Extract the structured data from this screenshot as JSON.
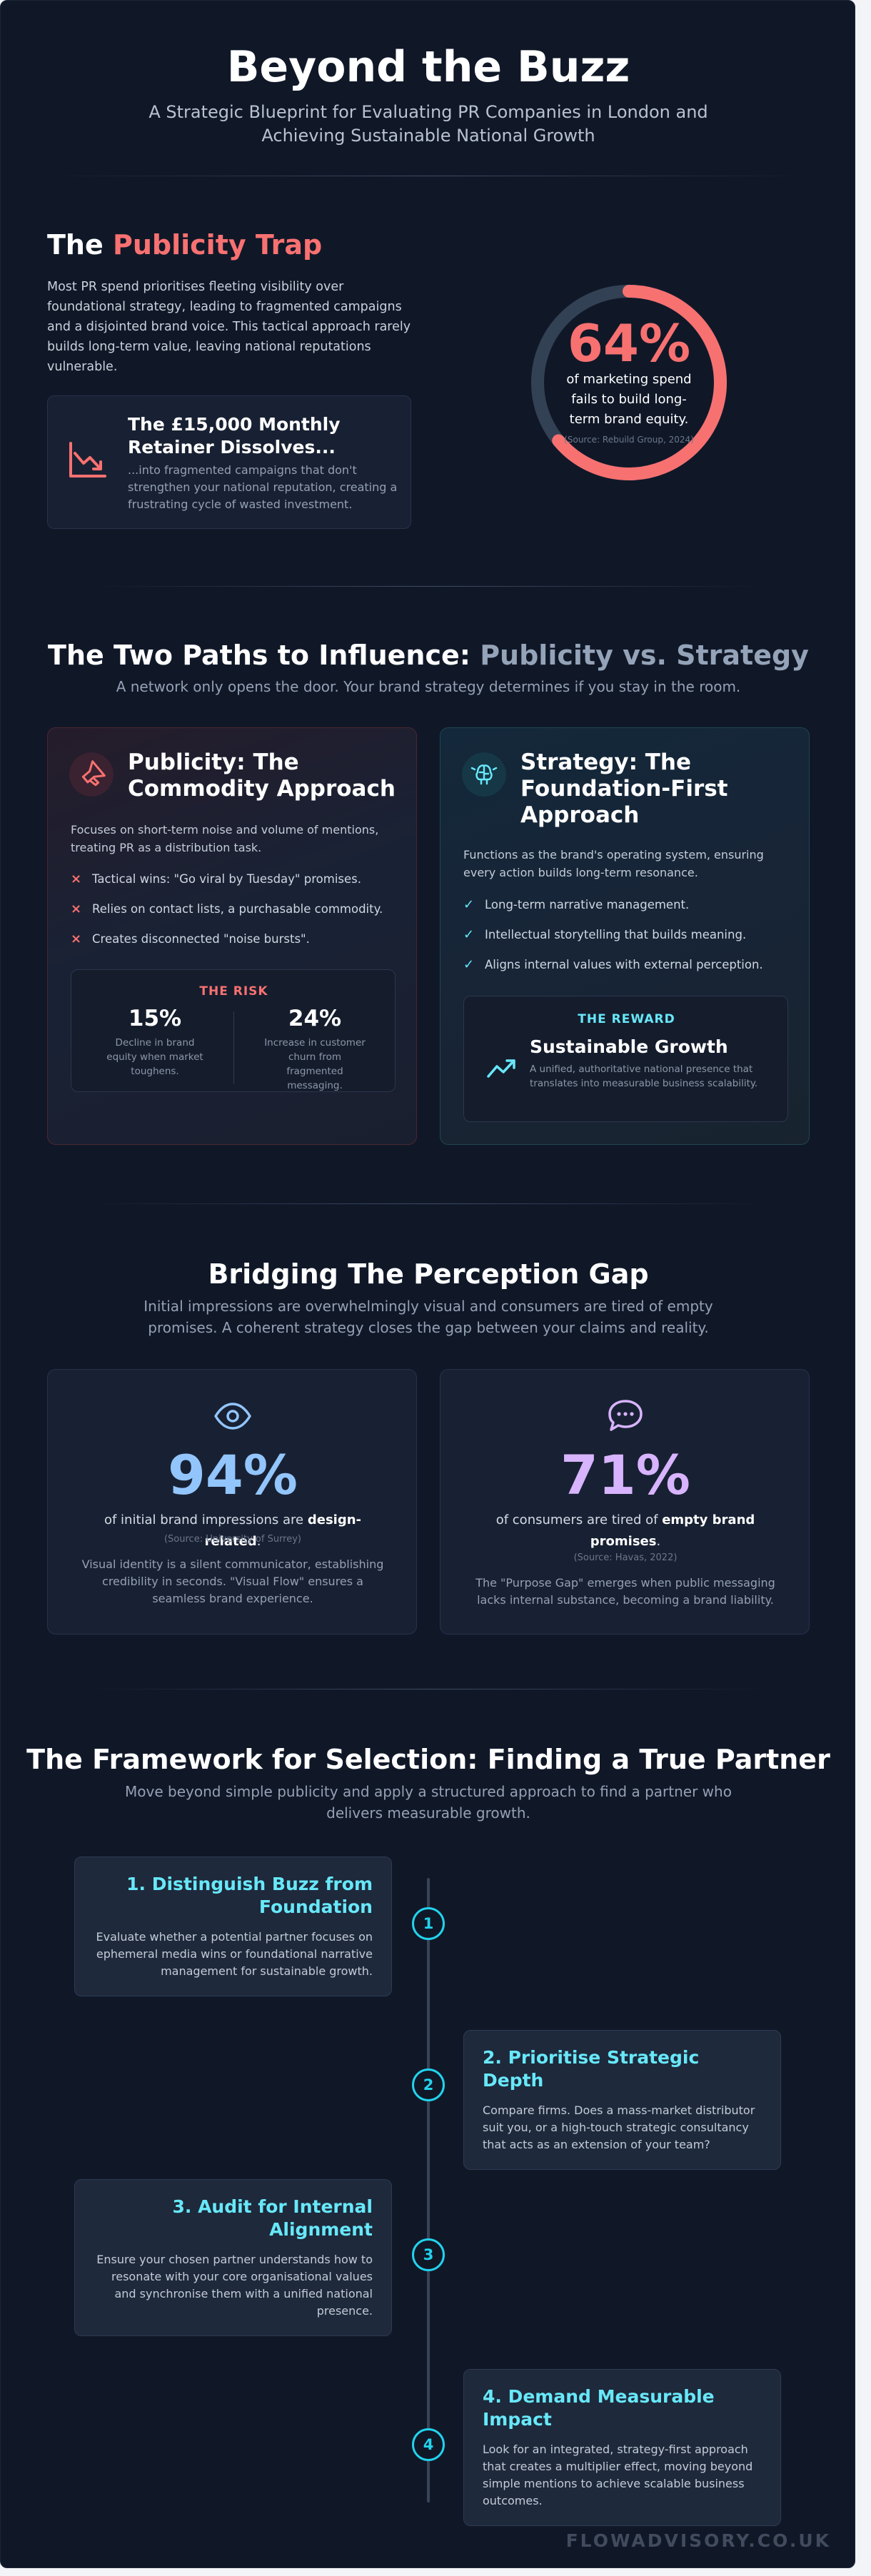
{
  "header": {
    "title": "Beyond the Buzz",
    "subtitle": "A Strategic Blueprint for Evaluating PR Companies in London and Achieving Sustainable National Growth"
  },
  "publicity_trap": {
    "title_prefix": "The",
    "title_accent": "Publicity Trap",
    "body": "Most PR spend prioritises fleeting visibility over foundational strategy, leading to fragmented campaigns and a disjointed brand voice. This tactical approach rarely builds long-term value, leaving national reputations vulnerable.",
    "retainer_title": "The £15,000 Monthly Retainer Dissolves...",
    "retainer_desc": "...into fragmented campaigns that don't strengthen your national reputation, creating a frustrating cycle of wasted investment.",
    "retainer_icon": "chart-down-icon",
    "stat_value": "64%",
    "stat_fraction": 0.64,
    "stat_label": "of marketing spend fails to build long-term brand equity.",
    "stat_source": "(Source: Rebuild Group, 2024)",
    "accent_color": "#f87171"
  },
  "two_paths": {
    "title_prefix": "The Two Paths to Influence:",
    "title_accent": "Publicity vs. Strategy",
    "subtitle": "A network only opens the door. Your brand strategy determines if you stay in the room.",
    "publicity": {
      "icon": "megaphone-icon",
      "title": "Publicity: The Commodity Approach",
      "desc": "Focuses on short-term noise and volume of mentions, treating PR as a distribution task.",
      "bullet_mark": "×",
      "bullets": [
        "Tactical wins: \"Go viral by Tuesday\" promises.",
        "Relies on contact lists, a purchasable commodity.",
        "Creates disconnected \"noise bursts\"."
      ],
      "risk_head": "THE RISK",
      "risk_stats": [
        {
          "value": "15%",
          "caption": "Decline in brand equity when market toughens."
        },
        {
          "value": "24%",
          "caption": "Increase in customer churn from fragmented messaging."
        }
      ]
    },
    "strategy": {
      "icon": "brain-icon",
      "title": "Strategy: The Foundation-First Approach",
      "desc": "Functions as the brand's operating system, ensuring every action builds long-term resonance.",
      "bullet_mark": "✓",
      "bullets": [
        "Long-term narrative management.",
        "Intellectual storytelling that builds meaning.",
        "Aligns internal values with external perception."
      ],
      "reward_head": "THE REWARD",
      "reward_icon": "trend-up-icon",
      "reward_title": "Sustainable Growth",
      "reward_desc": "A unified, authoritative national presence that translates into measurable business scalability."
    }
  },
  "perception_gap": {
    "title": "Bridging The Perception Gap",
    "subtitle": "Initial impressions are overwhelmingly visual and consumers are tired of empty promises. A coherent strategy closes the gap between your claims and reality.",
    "cards": [
      {
        "icon": "eye-icon",
        "value": "94%",
        "color": "#93c5fd",
        "line_pre": "of initial brand impressions are",
        "line_bold": "design-related",
        "line_post": ".",
        "source": "(Source: University of Surrey)",
        "note": "Visual identity is a silent communicator, establishing credibility in seconds. \"Visual Flow\" ensures a seamless brand experience."
      },
      {
        "icon": "speech-bubble-icon",
        "value": "71%",
        "color": "#d8b4fe",
        "line_pre": "of consumers are tired of",
        "line_bold": "empty brand promises",
        "line_post": ".",
        "source": "(Source: Havas, 2022)",
        "note": "The \"Purpose Gap\" emerges when public messaging lacks internal substance, becoming a brand liability."
      }
    ]
  },
  "framework": {
    "title": "The Framework for Selection: Finding a True Partner",
    "subtitle": "Move beyond simple publicity and apply a structured approach to find a partner who delivers measurable growth.",
    "steps": [
      {
        "num": "1",
        "title": "1. Distinguish Buzz from Foundation",
        "desc": "Evaluate whether a potential partner focuses on ephemeral media wins or foundational narrative management for sustainable growth."
      },
      {
        "num": "2",
        "title": "2. Prioritise Strategic Depth",
        "desc": "Compare firms. Does a mass-market distributor suit you, or a high-touch strategic consultancy that acts as an extension of your team?"
      },
      {
        "num": "3",
        "title": "3. Audit for Internal Alignment",
        "desc": "Ensure your chosen partner understands how to resonate with your core organisational values and synchronise them with a unified national presence."
      },
      {
        "num": "4",
        "title": "4. Demand Measurable Impact",
        "desc": "Look for an integrated, strategy-first approach that creates a multiplier effect, moving beyond simple mentions to achieve scalable business outcomes."
      }
    ]
  },
  "footer": {
    "brand": "FLOWADVISORY.CO.UK"
  }
}
